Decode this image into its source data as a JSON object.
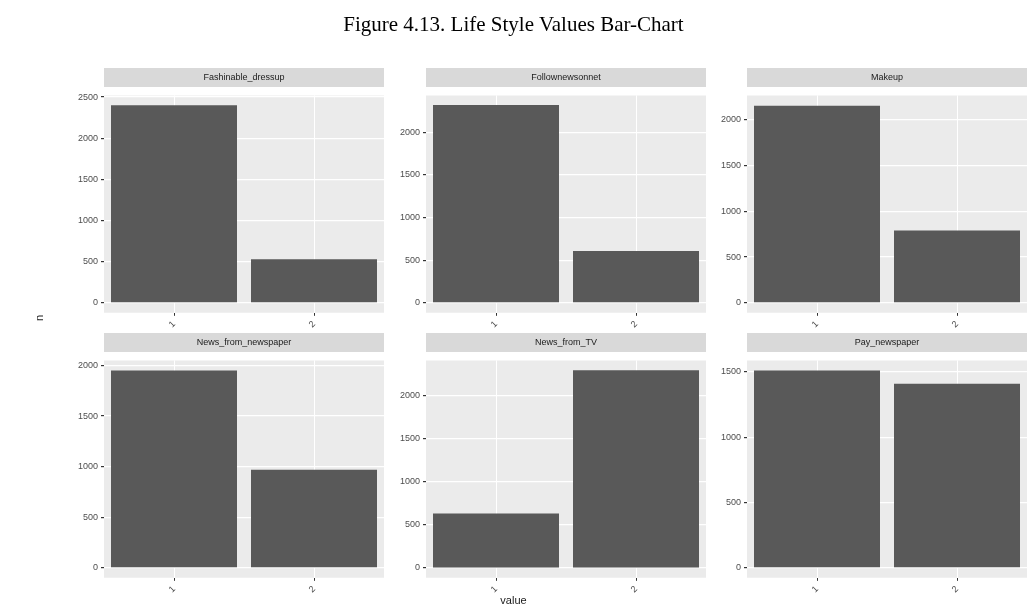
{
  "chart_data": [
    {
      "type": "bar",
      "title": "Fashinable_dressup",
      "annotations": [
        "Figure 4.13. Life Style Values Bar-Chart"
      ],
      "ylabel": "n",
      "categories": [
        "1",
        "2"
      ],
      "values": [
        2400,
        530
      ],
      "color": "#595959",
      "ylim": [
        -120,
        2520
      ],
      "yticks": [
        0,
        500,
        1000,
        1500,
        2000,
        2500
      ],
      "grid": true
    },
    {
      "type": "bar",
      "title": "Follownewsonnet",
      "categories": [
        "1",
        "2"
      ],
      "values": [
        2320,
        610
      ],
      "color": "#595959",
      "ylim": [
        -116,
        2433
      ],
      "yticks": [
        0,
        500,
        1000,
        1500,
        2000
      ],
      "grid": true
    },
    {
      "type": "bar",
      "title": "Makeup",
      "categories": [
        "1",
        "2"
      ],
      "values": [
        2150,
        790
      ],
      "color": "#595959",
      "ylim": [
        -108,
        2262
      ],
      "yticks": [
        0,
        500,
        1000,
        1500,
        2000
      ],
      "grid": true
    },
    {
      "type": "bar",
      "title": "News_from_newspaper",
      "categories": [
        "1",
        "2"
      ],
      "values": [
        1950,
        970
      ],
      "color": "#595959",
      "ylim": [
        -98,
        2050
      ],
      "yticks": [
        0,
        500,
        1000,
        1500,
        2000
      ],
      "grid": true
    },
    {
      "type": "bar",
      "title": "News_from_TV",
      "xlabel": "value",
      "categories": [
        "1",
        "2"
      ],
      "values": [
        630,
        2290
      ],
      "color": "#595959",
      "ylim": [
        -114,
        2403
      ],
      "yticks": [
        0,
        500,
        1000,
        1500,
        2000
      ],
      "grid": true
    },
    {
      "type": "bar",
      "title": "Pay_newspaper",
      "categories": [
        "1",
        "2"
      ],
      "values": [
        1510,
        1410
      ],
      "color": "#595959",
      "ylim": [
        -76,
        1588
      ],
      "yticks": [
        0,
        500,
        1000,
        1500
      ],
      "grid": true
    }
  ]
}
